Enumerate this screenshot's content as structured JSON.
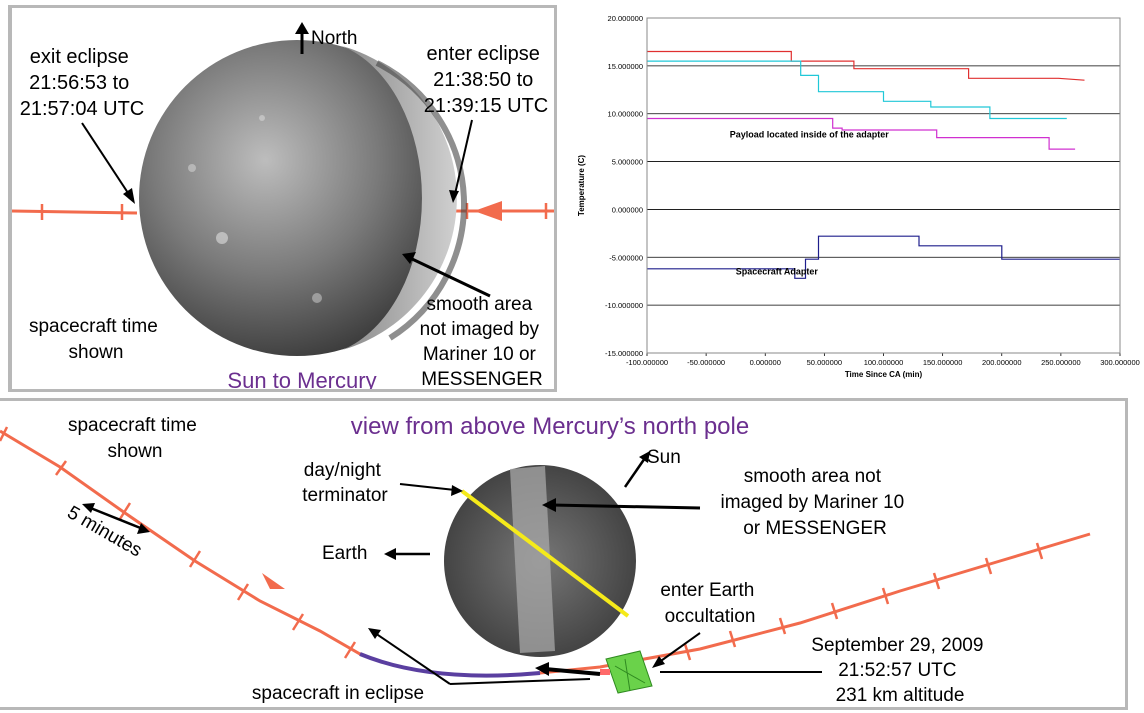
{
  "top_left": {
    "north_label": "North",
    "exit_eclipse": [
      "exit eclipse",
      "21:56:53 to",
      "21:57:04 UTC"
    ],
    "enter_eclipse": [
      "enter eclipse",
      "21:38:50 to",
      "21:39:15 UTC"
    ],
    "spacecraft_time": [
      "spacecraft time",
      "shown"
    ],
    "smooth_area": [
      "smooth area",
      "not imaged by",
      "Mariner 10 or",
      "MESSENGER"
    ],
    "caption": "Sun to Mercury",
    "colors": {
      "trajectory": "#f26b4d",
      "caption": "#6b2f8f"
    }
  },
  "bottom": {
    "title": "view from above Mercury’s north pole",
    "spacecraft_time": [
      "spacecraft time",
      "shown"
    ],
    "five_minutes": "5 minutes",
    "terminator": [
      "day/night",
      "terminator"
    ],
    "sun": "Sun",
    "smooth_area": [
      "smooth area not",
      "imaged by Mariner 10",
      "or MESSENGER"
    ],
    "earth": "Earth",
    "enter_occultation": [
      "enter Earth",
      "occultation"
    ],
    "date_block": [
      "September 29, 2009",
      "21:52:57 UTC",
      "231 km altitude"
    ],
    "in_eclipse": "spacecraft in eclipse",
    "colors": {
      "trajectory": "#f26b4d",
      "terminator": "#f5ea1a",
      "eclipse_segment": "#5a3fa0",
      "title": "#6b2f8f",
      "spacecraft": "#6ad24a"
    }
  },
  "chart_data": {
    "type": "line",
    "xlabel": "Time Since CA (min)",
    "ylabel": "Temperature (C)",
    "xlim": [
      -100,
      300
    ],
    "ylim": [
      -15,
      20
    ],
    "x_ticks": [
      "-100.000000",
      "-50.000000",
      "0.000000",
      "50.000000",
      "100.000000",
      "150.000000",
      "200.000000",
      "250.000000",
      "300.000000"
    ],
    "y_ticks": [
      "20.000000",
      "15.000000",
      "10.000000",
      "5.000000",
      "0.000000",
      "-5.000000",
      "-10.000000",
      "-15.000000"
    ],
    "annotations": [
      {
        "text": "Payload located inside of the adapter",
        "x": -30,
        "y": 7.5
      },
      {
        "text": "Spacecraft Adapter",
        "x": -25,
        "y": -6.8
      }
    ],
    "series": [
      {
        "color": "#e03030",
        "x": [
          -100,
          22,
          22,
          75,
          75,
          172,
          172,
          248,
          270
        ],
        "y": [
          16.5,
          16.5,
          15.5,
          15.5,
          14.7,
          14.7,
          13.7,
          13.7,
          13.5
        ]
      },
      {
        "color": "#20c8d8",
        "x": [
          -100,
          30,
          30,
          45,
          45,
          100,
          100,
          140,
          140,
          190,
          190,
          255
        ],
        "y": [
          15.5,
          15.5,
          14.0,
          14.0,
          12.3,
          12.3,
          11.3,
          11.3,
          10.7,
          10.7,
          9.5,
          9.5
        ]
      },
      {
        "color": "#d030d0",
        "x": [
          -100,
          57,
          57,
          65,
          65,
          145,
          145,
          240,
          240,
          262
        ],
        "y": [
          9.5,
          9.5,
          8.5,
          8.5,
          8.3,
          8.3,
          7.5,
          7.5,
          6.3,
          6.3
        ]
      },
      {
        "color": "#1e1e8c",
        "x": [
          -100,
          25,
          25,
          34,
          34,
          45,
          45,
          130,
          130,
          200,
          200,
          300
        ],
        "y": [
          -6.2,
          -6.2,
          -7.2,
          -7.2,
          -5.2,
          -5.2,
          -2.8,
          -2.8,
          -3.8,
          -3.8,
          -5.2,
          -5.2
        ]
      }
    ]
  }
}
